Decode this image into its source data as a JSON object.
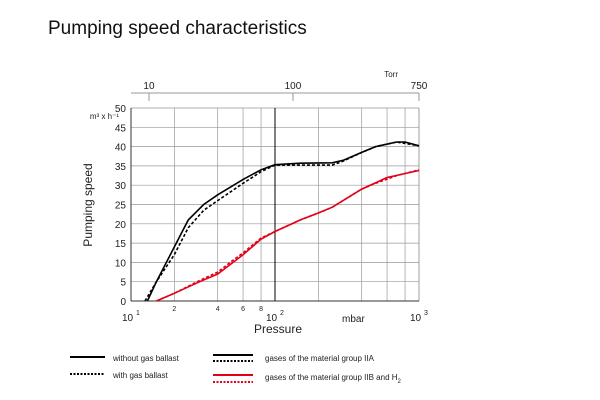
{
  "chart_data": {
    "type": "line",
    "title": "Pumping speed characteristics",
    "xlabel": "Pressure",
    "xunit": "mbar",
    "ylabel": "Pumping speed",
    "yunit": "m³ x h⁻¹",
    "xscale": "log",
    "xlim": [
      10,
      1000
    ],
    "ylim": [
      0,
      50
    ],
    "yticks": [
      "0",
      "5",
      "10",
      "15",
      "20",
      "25",
      "30",
      "35",
      "40",
      "45",
      "50"
    ],
    "xticks": [
      {
        "v": 10,
        "base": "10",
        "exp": "1"
      },
      {
        "v": 100,
        "base": "10",
        "exp": "2"
      },
      {
        "v": 1000,
        "base": "10",
        "exp": "3"
      }
    ],
    "xminor": [
      {
        "v": 20,
        "label": "2"
      },
      {
        "v": 40,
        "label": "4"
      },
      {
        "v": 60,
        "label": "6"
      },
      {
        "v": 80,
        "label": "8"
      },
      {
        "v": 200,
        "label": ""
      },
      {
        "v": 400,
        "label": ""
      },
      {
        "v": 600,
        "label": ""
      },
      {
        "v": 800,
        "label": ""
      }
    ],
    "top_axis": {
      "unit": "Torr",
      "ticks": [
        {
          "torr": "10",
          "mbar": 13.33
        },
        {
          "torr": "100",
          "mbar": 133.3
        },
        {
          "torr": "750",
          "mbar": 1000
        }
      ]
    },
    "grid": true,
    "series": [
      {
        "name": "IIA without gas ballast",
        "color": "#000000",
        "dash": false,
        "x": [
          13,
          15,
          20,
          25,
          32,
          40,
          60,
          80,
          100,
          150,
          250,
          300,
          400,
          500,
          700,
          800,
          1000
        ],
        "y": [
          0,
          5,
          14,
          21,
          25,
          27.5,
          31.5,
          34,
          35.3,
          35.7,
          35.8,
          36.5,
          38.5,
          40,
          41.2,
          41.2,
          40.2
        ]
      },
      {
        "name": "IIA with gas ballast",
        "color": "#000000",
        "dash": true,
        "x": [
          12.5,
          15,
          20,
          25,
          32,
          40,
          60,
          80,
          100,
          150,
          250,
          300,
          400,
          500,
          700,
          1000
        ],
        "y": [
          0,
          5,
          12,
          19,
          23.5,
          26,
          30.5,
          33.5,
          35.2,
          35.2,
          35.2,
          36.3,
          38.5,
          40,
          41.2,
          40.2
        ]
      },
      {
        "name": "IIB and H2 without gas ballast",
        "color": "#e3001b",
        "dash": false,
        "x": [
          15,
          20,
          30,
          40,
          60,
          80,
          100,
          150,
          200,
          250,
          400,
          600,
          1000
        ],
        "y": [
          0,
          2,
          5,
          7,
          12,
          16,
          18,
          21,
          22.8,
          24.3,
          29,
          32,
          33.8
        ]
      },
      {
        "name": "IIB and H2 with gas ballast",
        "color": "#e3001b",
        "dash": true,
        "x": [
          15,
          20,
          30,
          40,
          50,
          60,
          80,
          100,
          150,
          200,
          250,
          400,
          500,
          700,
          1000
        ],
        "y": [
          0,
          2,
          5.3,
          7.5,
          10.3,
          12.5,
          16.3,
          18,
          21,
          22.8,
          24.3,
          29,
          30.5,
          32.5,
          34
        ]
      }
    ],
    "legend": {
      "without": "without gas ballast",
      "with": "with gas ballast",
      "iia": "gases of the material group IIA",
      "iib": "gases of the material group IIB and H",
      "iib_sub": "2"
    }
  }
}
